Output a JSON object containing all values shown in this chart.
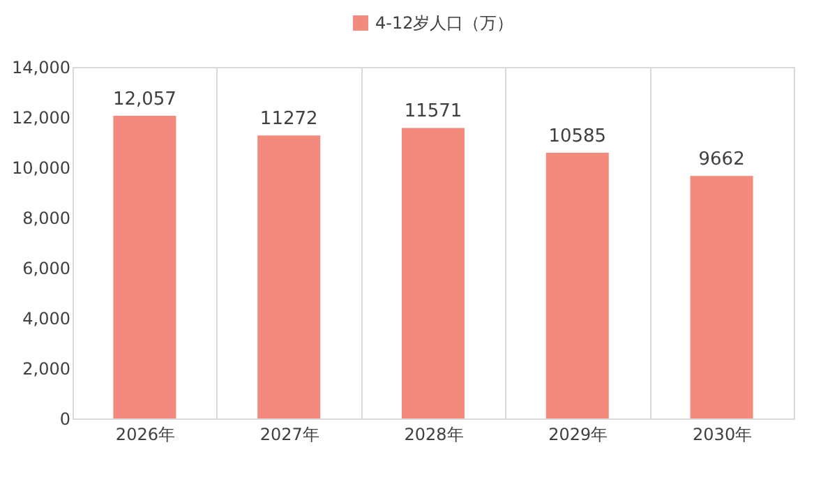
{
  "chart_data": {
    "type": "bar",
    "categories": [
      "2026年",
      "2027年",
      "2028年",
      "2029年",
      "2030年"
    ],
    "series": [
      {
        "name": "4-12岁人口（万）",
        "color": "#f28a7e",
        "values": [
          12057,
          11272,
          11571,
          10585,
          9662
        ]
      }
    ],
    "value_labels": [
      "12,057",
      "11272",
      "11571",
      "10585",
      "9662"
    ],
    "ylim": [
      0,
      14000
    ],
    "yticks": [
      {
        "value": 0,
        "label": "0"
      },
      {
        "value": 2000,
        "label": "2,000"
      },
      {
        "value": 4000,
        "label": "4,000"
      },
      {
        "value": 6000,
        "label": "6,000"
      },
      {
        "value": 8000,
        "label": "8,000"
      },
      {
        "value": 10000,
        "label": "10,000"
      },
      {
        "value": 12000,
        "label": "12,000"
      },
      {
        "value": 14000,
        "label": "14,000"
      }
    ],
    "grid": "x",
    "legend": "top"
  }
}
